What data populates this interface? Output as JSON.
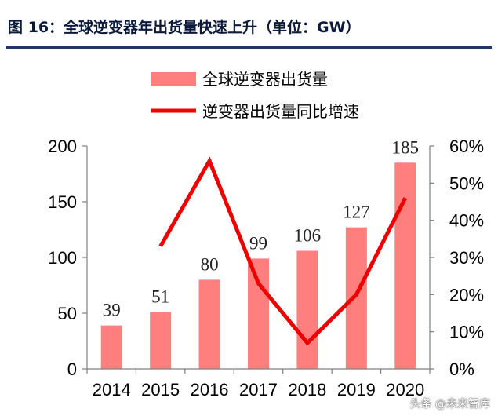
{
  "title": "图 16：全球逆变器年出货量快速上升（单位：GW）",
  "watermark": "头条 @未来智库",
  "colors": {
    "bar": "#ff7f7f",
    "line": "#ee0000",
    "title": "#0b1a3a",
    "rule": "#1f3864"
  },
  "chart_data": {
    "type": "bar",
    "categories": [
      "2014",
      "2015",
      "2016",
      "2017",
      "2018",
      "2019",
      "2020"
    ],
    "series": [
      {
        "name": "全球逆变器出货量",
        "type": "bar",
        "axis": "left",
        "values": [
          39,
          51,
          80,
          99,
          106,
          127,
          185
        ]
      },
      {
        "name": "逆变器出货量同比增速",
        "type": "line",
        "axis": "right",
        "values": [
          null,
          0.33,
          0.56,
          0.23,
          0.07,
          0.2,
          0.46
        ]
      }
    ],
    "data_labels": [
      "39",
      "51",
      "80",
      "99",
      "106",
      "127",
      "185"
    ],
    "ylim": [
      0,
      200
    ],
    "yticks": [
      "0",
      "50",
      "100",
      "150",
      "200"
    ],
    "y2lim": [
      0,
      0.6
    ],
    "y2ticks": [
      "0%",
      "10%",
      "20%",
      "30%",
      "40%",
      "50%",
      "60%"
    ],
    "legend_position": "top-center",
    "grid": false
  }
}
